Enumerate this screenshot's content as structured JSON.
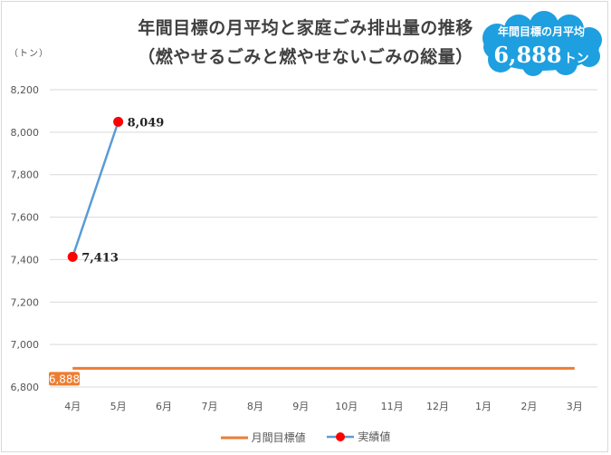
{
  "title_line1": "年間目標の月平均と家庭ごみ排出量の推移",
  "title_line2": "（燃やせるごみと燃やせないごみの総量）",
  "unit_label": "（トン）",
  "badge": {
    "caption": "年間目標の月平均",
    "value": "6,888",
    "unit": "トン"
  },
  "colors": {
    "target": "#ED7D31",
    "actual_line": "#5B9BD5",
    "actual_marker": "#FF0000",
    "badge": "#1E9FE0"
  },
  "chart_data": {
    "type": "line",
    "categories": [
      "4月",
      "5月",
      "6月",
      "7月",
      "8月",
      "9月",
      "10月",
      "11月",
      "12月",
      "1月",
      "2月",
      "3月"
    ],
    "ylim": [
      6800,
      8200
    ],
    "yticks": [
      "6,800",
      "7,000",
      "7,200",
      "7,400",
      "7,600",
      "7,800",
      "8,000",
      "8,200"
    ],
    "ytick_values": [
      6800,
      7000,
      7200,
      7400,
      7600,
      7800,
      8000,
      8200
    ],
    "grid": true,
    "legend_position": "bottom",
    "series": [
      {
        "name": "月間目標値",
        "values": [
          6888,
          6888,
          6888,
          6888,
          6888,
          6888,
          6888,
          6888,
          6888,
          6888,
          6888,
          6888
        ],
        "label": "6,888"
      },
      {
        "name": "実績値",
        "values": [
          7413,
          8049,
          null,
          null,
          null,
          null,
          null,
          null,
          null,
          null,
          null,
          null
        ],
        "labels": [
          "7,413",
          "8,049"
        ]
      }
    ]
  }
}
